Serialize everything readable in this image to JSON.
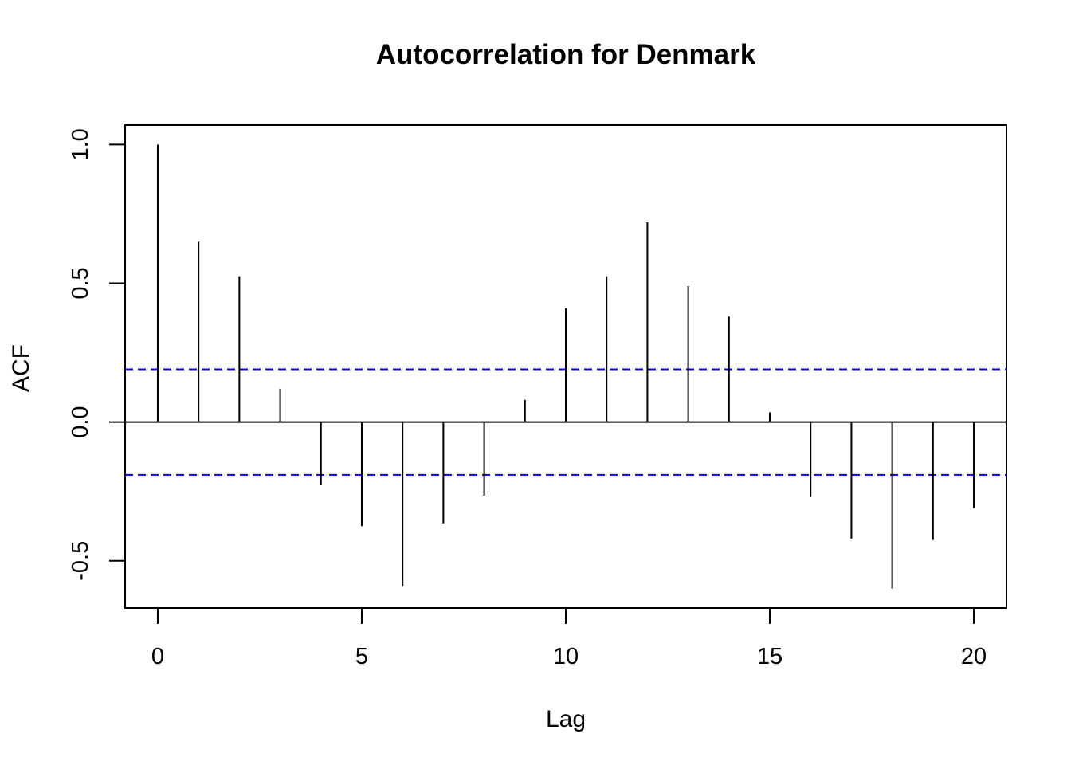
{
  "chart_data": {
    "type": "bar",
    "title": "Autocorrelation for Denmark",
    "xlabel": "Lag",
    "ylabel": "ACF",
    "xlim": [
      -0.8,
      20.8
    ],
    "ylim": [
      -0.67,
      1.07
    ],
    "x_ticks": [
      0,
      5,
      10,
      15,
      20
    ],
    "x_tick_labels": [
      "0",
      "5",
      "10",
      "15",
      "20"
    ],
    "y_ticks": [
      -0.5,
      0.0,
      0.5,
      1.0
    ],
    "y_tick_labels": [
      "-0.5",
      "0.0",
      "0.5",
      "1.0"
    ],
    "lags": [
      0,
      1,
      2,
      3,
      4,
      5,
      6,
      7,
      8,
      9,
      10,
      11,
      12,
      13,
      14,
      15,
      16,
      17,
      18,
      19,
      20
    ],
    "acf": [
      1.0,
      0.65,
      0.525,
      0.12,
      -0.225,
      -0.375,
      -0.59,
      -0.365,
      -0.265,
      0.08,
      0.41,
      0.525,
      0.72,
      0.49,
      0.38,
      0.035,
      -0.27,
      -0.42,
      -0.6,
      -0.425,
      -0.31
    ],
    "confidence_bound": 0.19,
    "colors": {
      "bars": "#000000",
      "confidence_lines": "#0000ff",
      "zero_line": "#000000"
    },
    "grid": false,
    "legend": "none"
  }
}
